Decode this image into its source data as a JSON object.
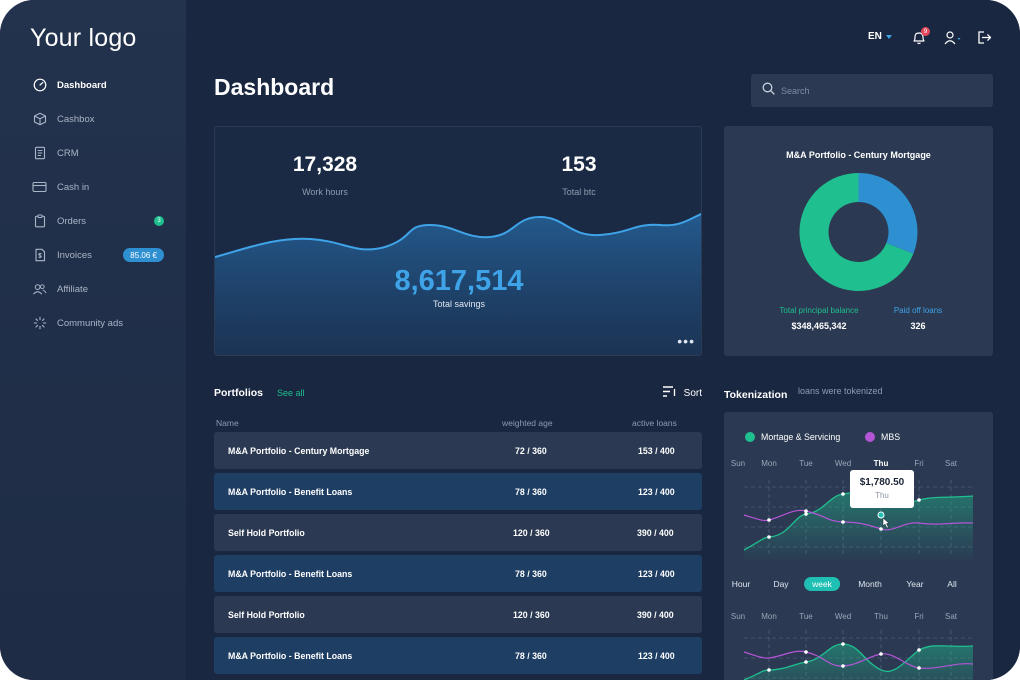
{
  "sidebar": {
    "logo": "Your logo",
    "items": [
      {
        "label": "Dashboard",
        "icon": "dashboard-gauge-icon",
        "active": true
      },
      {
        "label": "Cashbox",
        "icon": "cube-box-icon"
      },
      {
        "label": "CRM",
        "icon": "document-icon"
      },
      {
        "label": "Cash in",
        "icon": "credit-card-icon"
      },
      {
        "label": "Orders",
        "icon": "orders-clipboard-icon",
        "badge": "3"
      },
      {
        "label": "Invoices",
        "icon": "invoice-icon",
        "pill": "85.06 €"
      },
      {
        "label": "Affiliate",
        "icon": "users-icon"
      },
      {
        "label": "Community ads",
        "icon": "loader-burst-icon"
      }
    ]
  },
  "topbar": {
    "language": "EN",
    "notifications_count": "9",
    "icons": [
      "bell-icon",
      "user-icon",
      "logout-icon"
    ]
  },
  "header": {
    "title": "Dashboard",
    "search_placeholder": "Search"
  },
  "summary": {
    "work_hours": {
      "value": "17,328",
      "label": "Work hours"
    },
    "total_btc": {
      "value": "153",
      "label": "Total btc"
    },
    "total_savings": {
      "value": "8,617,514",
      "label": "Total savings"
    },
    "more_label": "•••"
  },
  "pie_card": {
    "title": "M&A Portfolio - Century Mortgage",
    "legend": [
      {
        "label": "Total principal balance",
        "value": "$348,465,342",
        "color": "#1fbf8f"
      },
      {
        "label": "Paid off loans",
        "value": "326",
        "color": "#2e8fd1"
      }
    ],
    "share_paid_off": 0.31
  },
  "portfolios": {
    "title": "Portfolios",
    "see_all": "See all",
    "sort_label": "Sort",
    "columns": [
      "Name",
      "weighted age",
      "active loans"
    ],
    "rows": [
      {
        "name": "M&A Portfolio - Century Mortgage",
        "age": "72 / 360",
        "loans": "153 / 400"
      },
      {
        "name": "M&A Portfolio - Benefit Loans",
        "age": "78 / 360",
        "loans": "123 / 400"
      },
      {
        "name": "Self Hold Portfolio",
        "age": "120 / 360",
        "loans": "390 / 400"
      },
      {
        "name": "M&A Portfolio - Benefit Loans",
        "age": "78 / 360",
        "loans": "123 / 400"
      },
      {
        "name": "Self Hold Portfolio",
        "age": "120 / 360",
        "loans": "390 / 400"
      },
      {
        "name": "M&A Portfolio - Benefit Loans",
        "age": "78 / 360",
        "loans": "123 / 400"
      }
    ]
  },
  "tokenization": {
    "title": "Tokenization",
    "subtitle": "loans were tokenized",
    "legend": [
      {
        "label": "Mortage & Servicing",
        "color": "#1fbf8f"
      },
      {
        "label": "MBS",
        "color": "#b455d6"
      }
    ],
    "days": [
      "Sun",
      "Mon",
      "Tue",
      "Wed",
      "Thu",
      "Fri",
      "Sat"
    ],
    "selected_day": "Thu",
    "tooltip": {
      "value": "$1,780.50",
      "day": "Thu"
    },
    "periods": [
      "Hour",
      "Day",
      "week",
      "Month",
      "Year",
      "All"
    ],
    "selected_period": "week"
  },
  "colors": {
    "accent_blue": "#3fa3e8",
    "accent_green": "#1fbf8f",
    "accent_teal": "#1fbfb3",
    "accent_purple": "#b455d6",
    "badge_red": "#e5485a"
  }
}
